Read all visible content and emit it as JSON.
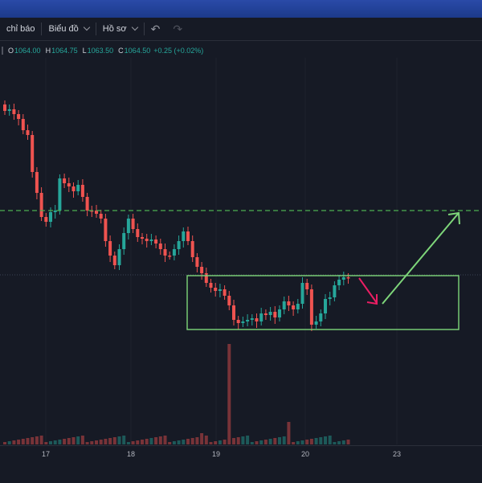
{
  "toolbar": {
    "indicators_label": "chỉ báo",
    "chart_label": "Biểu đồ",
    "profile_label": "Hồ sơ",
    "undo_icon": "undo-icon",
    "redo_icon": "redo-icon"
  },
  "legend": {
    "open_label": "O",
    "open": "1064.00",
    "high_label": "H",
    "high": "1064.75",
    "low_label": "L",
    "low": "1063.50",
    "close_label": "C",
    "close": "1064.50",
    "change": "+0.25 (+0.02%)"
  },
  "xaxis": {
    "ticks": [
      "17",
      "18",
      "19",
      "20",
      "23"
    ]
  },
  "colors": {
    "up": "#26a69a",
    "down": "#ef5350",
    "box": "#7ed67a",
    "arrow_up": "#7ed67a",
    "arrow_down": "#e91e63",
    "level": "#4caf50"
  },
  "chart_data": {
    "type": "candlestick",
    "x": [
      "17",
      "18",
      "19",
      "20",
      "23"
    ],
    "annotations": [
      "horizontal dashed level",
      "consolidation rectangle",
      "down arrow",
      "up arrow"
    ]
  }
}
